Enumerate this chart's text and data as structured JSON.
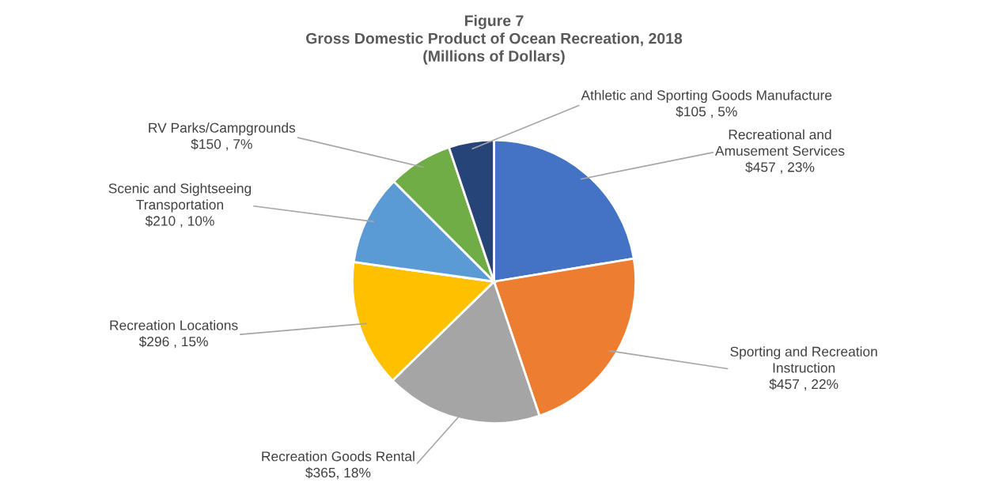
{
  "chart_data": {
    "type": "pie",
    "title": "Figure 7\nGross Domestic Product of Ocean Recreation, 2018\n(Millions of Dollars)",
    "categories": [
      "Recreational and\nAmusement Services",
      "Sporting and Recreation\nInstruction",
      "Recreation Goods Rental",
      "Recreation Locations",
      "Scenic and Sightseeing\nTransportation",
      "RV Parks/Campgrounds",
      "Athletic and Sporting Goods Manufacture"
    ],
    "values": [
      457,
      457,
      365,
      296,
      210,
      150,
      105
    ],
    "colors": [
      "#4472c4",
      "#ed7d31",
      "#a5a5a5",
      "#ffc000",
      "#5b9bd5",
      "#70ad47",
      "#264478"
    ],
    "value_labels": [
      "$457 , 23%",
      "$457 , 22%",
      "$365, 18%",
      "$296 , 15%",
      "$210 , 10%",
      "$150 , 7%",
      "$105 , 5%"
    ],
    "legend": false
  }
}
